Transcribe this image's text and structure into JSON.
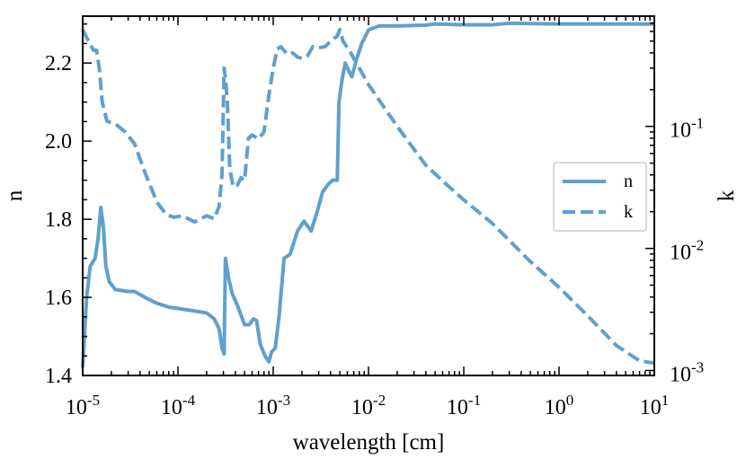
{
  "chart_data": {
    "type": "line",
    "xlabel": "wavelength [cm]",
    "ylabel_left": "n",
    "ylabel_right": "k",
    "x_scale": "log",
    "xlim": [
      1e-05,
      10
    ],
    "ylim_left": [
      1.4,
      2.32
    ],
    "ylim_right": [
      0.00091,
      0.8
    ],
    "x_ticks": [
      {
        "value": 1e-05,
        "base": "10",
        "exp": "-5"
      },
      {
        "value": 0.0001,
        "base": "10",
        "exp": "-4"
      },
      {
        "value": 0.001,
        "base": "10",
        "exp": "-3"
      },
      {
        "value": 0.01,
        "base": "10",
        "exp": "-2"
      },
      {
        "value": 0.1,
        "base": "10",
        "exp": "-1"
      },
      {
        "value": 1,
        "base": "10",
        "exp": "0"
      },
      {
        "value": 10,
        "base": "10",
        "exp": "1"
      }
    ],
    "y_left_ticks": [
      {
        "value": 1.4,
        "label": "1.4"
      },
      {
        "value": 1.6,
        "label": "1.6"
      },
      {
        "value": 1.8,
        "label": "1.8"
      },
      {
        "value": 2.0,
        "label": "2.0"
      },
      {
        "value": 2.2,
        "label": "2.2"
      }
    ],
    "y_right_ticks": [
      {
        "value": 0.1,
        "base": "10",
        "exp": "-1"
      },
      {
        "value": 0.01,
        "base": "10",
        "exp": "-2"
      },
      {
        "value": 0.001,
        "base": "10",
        "exp": "-3"
      }
    ],
    "legend": {
      "location": "center-right",
      "entries": [
        {
          "label": "n",
          "style": "solid"
        },
        {
          "label": "k",
          "style": "dashed"
        }
      ]
    },
    "color": "#5fa0ce",
    "series": [
      {
        "name": "n",
        "axis": "left",
        "style": "solid",
        "points": [
          [
            1e-05,
            1.42
          ],
          [
            1.1e-05,
            1.6
          ],
          [
            1.2e-05,
            1.68
          ],
          [
            1.35e-05,
            1.7
          ],
          [
            1.45e-05,
            1.75
          ],
          [
            1.55e-05,
            1.83
          ],
          [
            1.65e-05,
            1.78
          ],
          [
            1.75e-05,
            1.68
          ],
          [
            1.9e-05,
            1.64
          ],
          [
            2.2e-05,
            1.62
          ],
          [
            3e-05,
            1.615
          ],
          [
            3.5e-05,
            1.615
          ],
          [
            4.5e-05,
            1.6
          ],
          [
            6e-05,
            1.585
          ],
          [
            8e-05,
            1.575
          ],
          [
            0.00011,
            1.57
          ],
          [
            0.00015,
            1.565
          ],
          [
            0.0002,
            1.56
          ],
          [
            0.00024,
            1.545
          ],
          [
            0.00027,
            1.52
          ],
          [
            0.00029,
            1.47
          ],
          [
            0.000305,
            1.455
          ],
          [
            0.000315,
            1.7
          ],
          [
            0.00034,
            1.65
          ],
          [
            0.00037,
            1.61
          ],
          [
            0.00042,
            1.58
          ],
          [
            0.0005,
            1.53
          ],
          [
            0.00056,
            1.53
          ],
          [
            0.00062,
            1.545
          ],
          [
            0.00067,
            1.54
          ],
          [
            0.00073,
            1.48
          ],
          [
            0.00082,
            1.45
          ],
          [
            0.0009,
            1.435
          ],
          [
            0.00096,
            1.46
          ],
          [
            0.00105,
            1.47
          ],
          [
            0.00115,
            1.55
          ],
          [
            0.0013,
            1.7
          ],
          [
            0.0015,
            1.71
          ],
          [
            0.0018,
            1.77
          ],
          [
            0.0021,
            1.795
          ],
          [
            0.0025,
            1.77
          ],
          [
            0.0029,
            1.82
          ],
          [
            0.0033,
            1.87
          ],
          [
            0.0038,
            1.89
          ],
          [
            0.0042,
            1.9
          ],
          [
            0.0047,
            1.9
          ],
          [
            0.0049,
            2.1
          ],
          [
            0.0053,
            2.16
          ],
          [
            0.0057,
            2.2
          ],
          [
            0.0062,
            2.18
          ],
          [
            0.0067,
            2.165
          ],
          [
            0.0075,
            2.21
          ],
          [
            0.0085,
            2.25
          ],
          [
            0.01,
            2.285
          ],
          [
            0.013,
            2.295
          ],
          [
            0.02,
            2.295
          ],
          [
            0.04,
            2.297
          ],
          [
            0.05,
            2.3
          ],
          [
            0.1,
            2.298
          ],
          [
            0.2,
            2.298
          ],
          [
            0.3,
            2.302
          ],
          [
            1.0,
            2.3
          ],
          [
            10,
            2.3
          ]
        ]
      },
      {
        "name": "k",
        "axis": "right",
        "style": "dashed",
        "points": [
          [
            1e-05,
            0.62
          ],
          [
            1.15e-05,
            0.5
          ],
          [
            1.3e-05,
            0.42
          ],
          [
            1.4e-05,
            0.42
          ],
          [
            1.5e-05,
            0.29
          ],
          [
            1.6e-05,
            0.16
          ],
          [
            1.8e-05,
            0.11
          ],
          [
            2.2e-05,
            0.105
          ],
          [
            2.8e-05,
            0.09
          ],
          [
            3.5e-05,
            0.072
          ],
          [
            4.5e-05,
            0.042
          ],
          [
            6e-05,
            0.024
          ],
          [
            7.5e-05,
            0.019
          ],
          [
            9e-05,
            0.018
          ],
          [
            0.00011,
            0.0185
          ],
          [
            0.00015,
            0.0165
          ],
          [
            0.0002,
            0.0185
          ],
          [
            0.00024,
            0.0175
          ],
          [
            0.00027,
            0.022
          ],
          [
            0.00029,
            0.04
          ],
          [
            0.000305,
            0.3
          ],
          [
            0.000315,
            0.25
          ],
          [
            0.00033,
            0.16
          ],
          [
            0.00035,
            0.045
          ],
          [
            0.00038,
            0.032
          ],
          [
            0.00042,
            0.033
          ],
          [
            0.00046,
            0.038
          ],
          [
            0.0005,
            0.036
          ],
          [
            0.00055,
            0.08
          ],
          [
            0.0006,
            0.085
          ],
          [
            0.0007,
            0.079
          ],
          [
            0.0008,
            0.09
          ],
          [
            0.0009,
            0.18
          ],
          [
            0.001,
            0.3
          ],
          [
            0.0011,
            0.43
          ],
          [
            0.0012,
            0.45
          ],
          [
            0.0014,
            0.39
          ],
          [
            0.0016,
            0.4
          ],
          [
            0.0018,
            0.37
          ],
          [
            0.002,
            0.36
          ],
          [
            0.0023,
            0.38
          ],
          [
            0.0026,
            0.45
          ],
          [
            0.003,
            0.44
          ],
          [
            0.0035,
            0.45
          ],
          [
            0.004,
            0.5
          ],
          [
            0.0047,
            0.55
          ],
          [
            0.005,
            0.62
          ],
          [
            0.0054,
            0.5
          ],
          [
            0.0065,
            0.4
          ],
          [
            0.01,
            0.22
          ],
          [
            0.02,
            0.1
          ],
          [
            0.04,
            0.048
          ],
          [
            0.07,
            0.032
          ],
          [
            0.1,
            0.025
          ],
          [
            0.2,
            0.016
          ],
          [
            0.5,
            0.0078
          ],
          [
            1.0,
            0.0048
          ],
          [
            2.0,
            0.0028
          ],
          [
            4.0,
            0.0016
          ],
          [
            7.0,
            0.0012
          ],
          [
            10,
            0.00115
          ]
        ]
      }
    ]
  }
}
